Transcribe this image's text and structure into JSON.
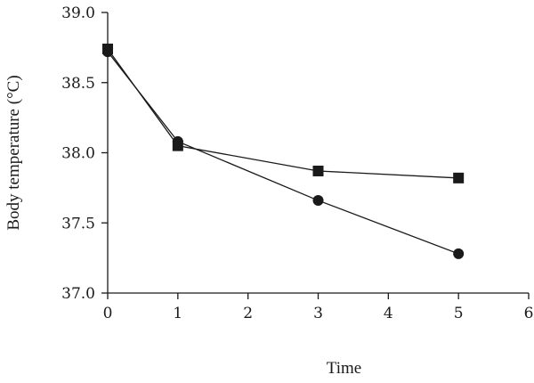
{
  "chart_data": {
    "type": "line",
    "xlabel": "Time",
    "ylabel": "Body temperature (°C)",
    "xlim": [
      0,
      6
    ],
    "ylim": [
      37.0,
      39.0
    ],
    "xticks": [
      0,
      1,
      2,
      3,
      4,
      5,
      6
    ],
    "yticks": [
      37.0,
      37.5,
      38.0,
      38.5,
      39.0
    ],
    "xtick_labels": [
      "0",
      "1",
      "2",
      "3",
      "4",
      "5",
      "6"
    ],
    "ytick_labels": [
      "37.0",
      "37.5",
      "38.0",
      "38.5",
      "39.0"
    ],
    "grid": false,
    "series": [
      {
        "marker": "circle",
        "x": [
          0,
          1,
          3,
          5
        ],
        "y": [
          38.72,
          38.08,
          37.66,
          37.28
        ]
      },
      {
        "marker": "square",
        "x": [
          0,
          1,
          3,
          5
        ],
        "y": [
          38.74,
          38.05,
          37.87,
          37.82
        ]
      }
    ],
    "colors": {
      "ink": "#1a1a1a",
      "background": "#ffffff"
    }
  }
}
